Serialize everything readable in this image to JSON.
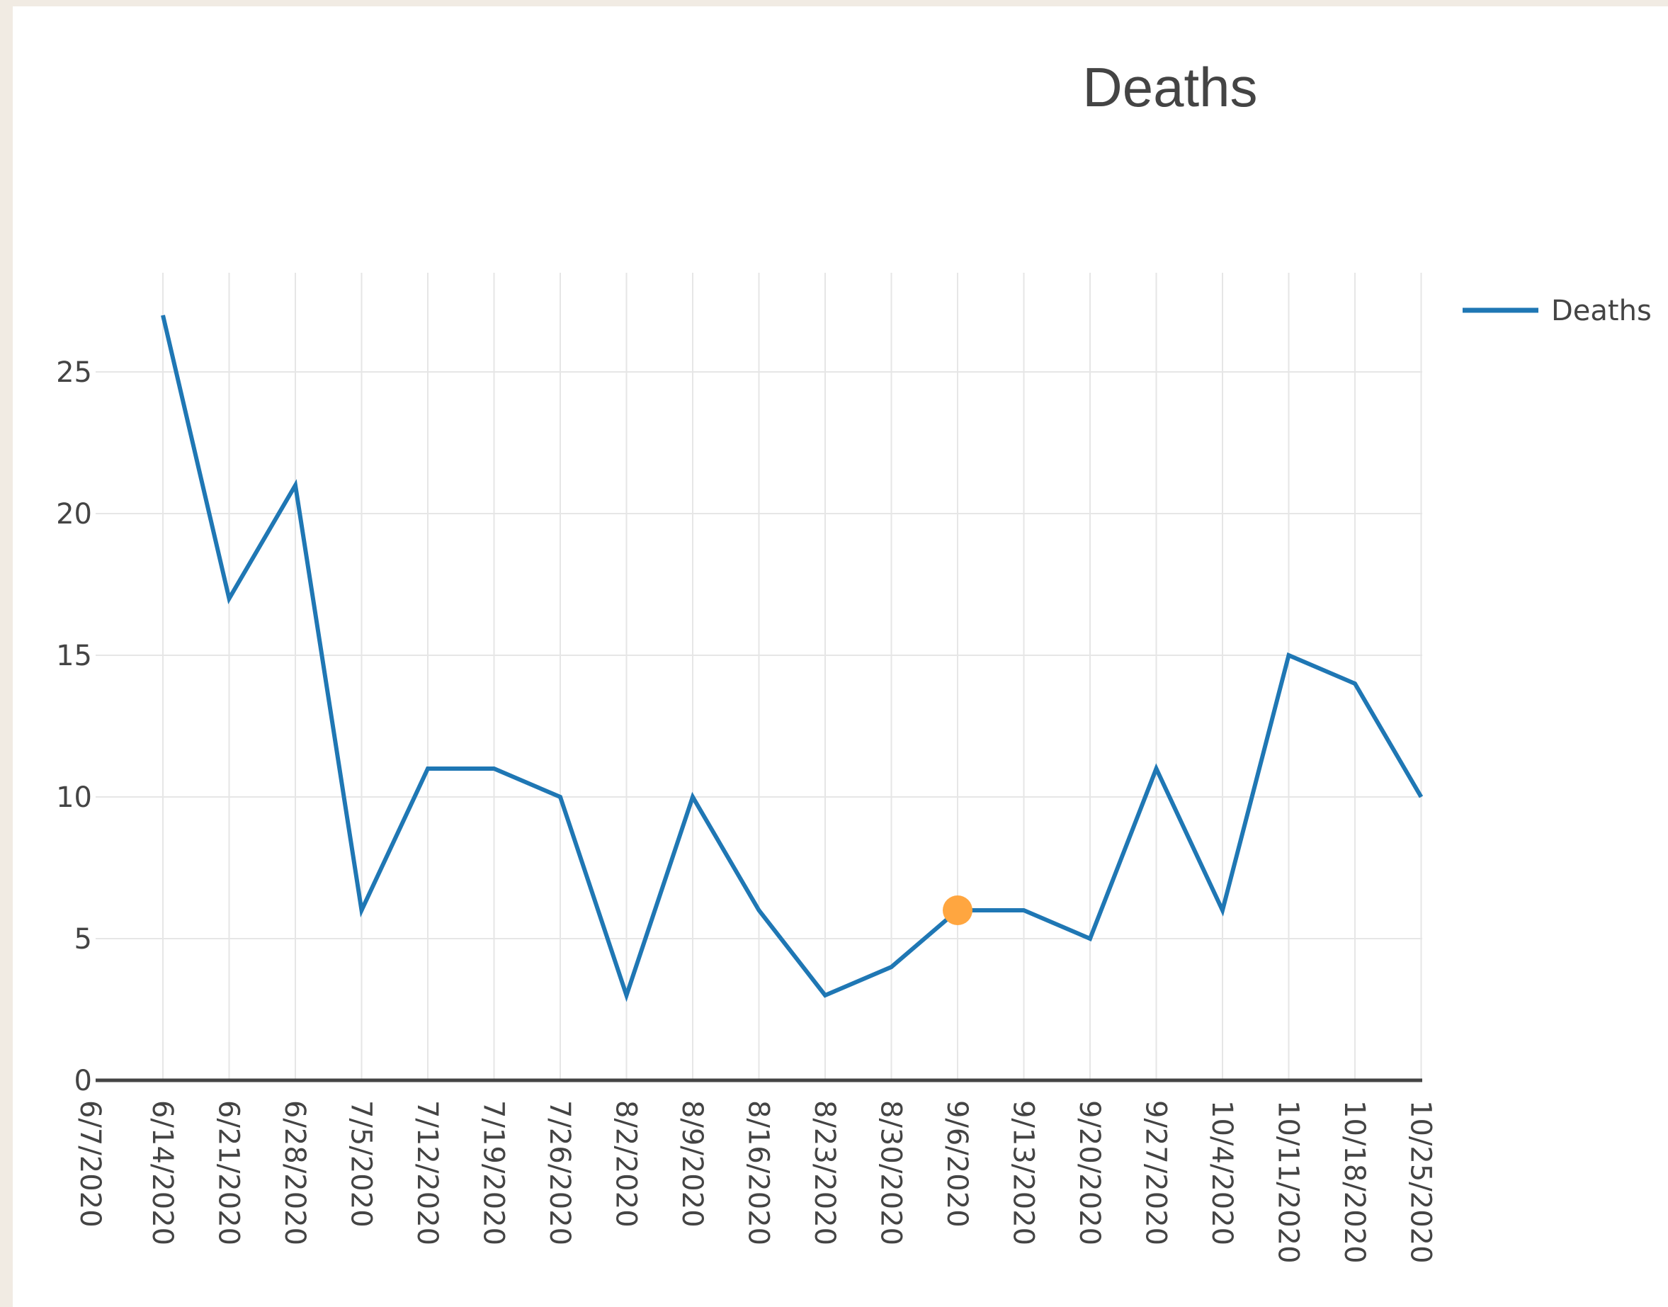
{
  "chart_data": {
    "type": "line",
    "title": "Deaths",
    "xlabel": "",
    "ylabel": "",
    "ylim": [
      0,
      28.5
    ],
    "y_ticks": [
      0,
      5,
      10,
      15,
      20,
      25
    ],
    "x": [
      "6/7/2020",
      "6/14/2020",
      "6/21/2020",
      "6/28/2020",
      "7/5/2020",
      "7/12/2020",
      "7/19/2020",
      "7/26/2020",
      "8/2/2020",
      "8/9/2020",
      "8/16/2020",
      "8/23/2020",
      "8/30/2020",
      "9/6/2020",
      "9/13/2020",
      "9/20/2020",
      "9/27/2020",
      "10/4/2020",
      "10/11/2020",
      "10/18/2020",
      "10/25/2020"
    ],
    "series": [
      {
        "name": "Deaths",
        "color": "#1f77b4",
        "x": [
          "6/14/2020",
          "6/21/2020",
          "6/28/2020",
          "7/5/2020",
          "7/12/2020",
          "7/19/2020",
          "7/26/2020",
          "8/2/2020",
          "8/9/2020",
          "8/16/2020",
          "8/23/2020",
          "8/30/2020",
          "9/6/2020",
          "9/13/2020",
          "9/20/2020",
          "9/27/2020",
          "10/4/2020",
          "10/11/2020",
          "10/18/2020",
          "10/25/2020"
        ],
        "values": [
          27,
          17,
          21,
          6,
          11,
          11,
          10,
          3,
          10,
          6,
          3,
          4,
          6,
          6,
          5,
          11,
          6,
          15,
          14,
          10
        ]
      }
    ],
    "highlight": {
      "x": "9/6/2020",
      "value": 6,
      "color": "#ffa640"
    },
    "grid": true,
    "legend_position": "top-right"
  }
}
